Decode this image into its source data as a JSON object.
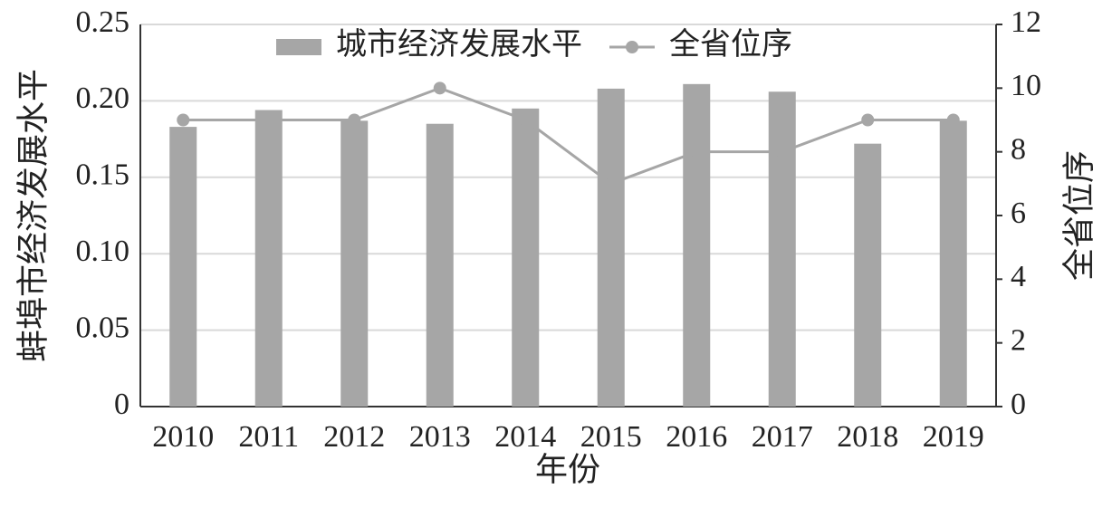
{
  "chart_data": {
    "type": "bar",
    "x_label": "年份",
    "y_label": "蚌埠市经济发展水平",
    "y2_label": "全省位序",
    "categories": [
      "2010",
      "2011",
      "2012",
      "2013",
      "2014",
      "2015",
      "2016",
      "2017",
      "2018",
      "2019"
    ],
    "series": [
      {
        "name": "城市经济发展水平",
        "type": "bar",
        "color": "#a6a6a6",
        "values": [
          0.183,
          0.194,
          0.187,
          0.185,
          0.195,
          0.208,
          0.211,
          0.206,
          0.172,
          0.187
        ]
      },
      {
        "name": "全省位序",
        "type": "line",
        "axis": "y2",
        "color": "#a6a6a6",
        "values": [
          9,
          9,
          9,
          10,
          9,
          7,
          8,
          8,
          9,
          9
        ]
      }
    ],
    "ylim": [
      0,
      0.25
    ],
    "yticks": [
      0,
      0.05,
      {
        "value": 0.1,
        "label": "0.10"
      },
      0.15,
      {
        "value": 0.2,
        "label": "0.20"
      },
      0.25
    ],
    "y2lim": [
      0,
      12
    ],
    "y2ticks": [
      0,
      2,
      4,
      6,
      8,
      10,
      12
    ],
    "grid": true,
    "legend": "top"
  }
}
